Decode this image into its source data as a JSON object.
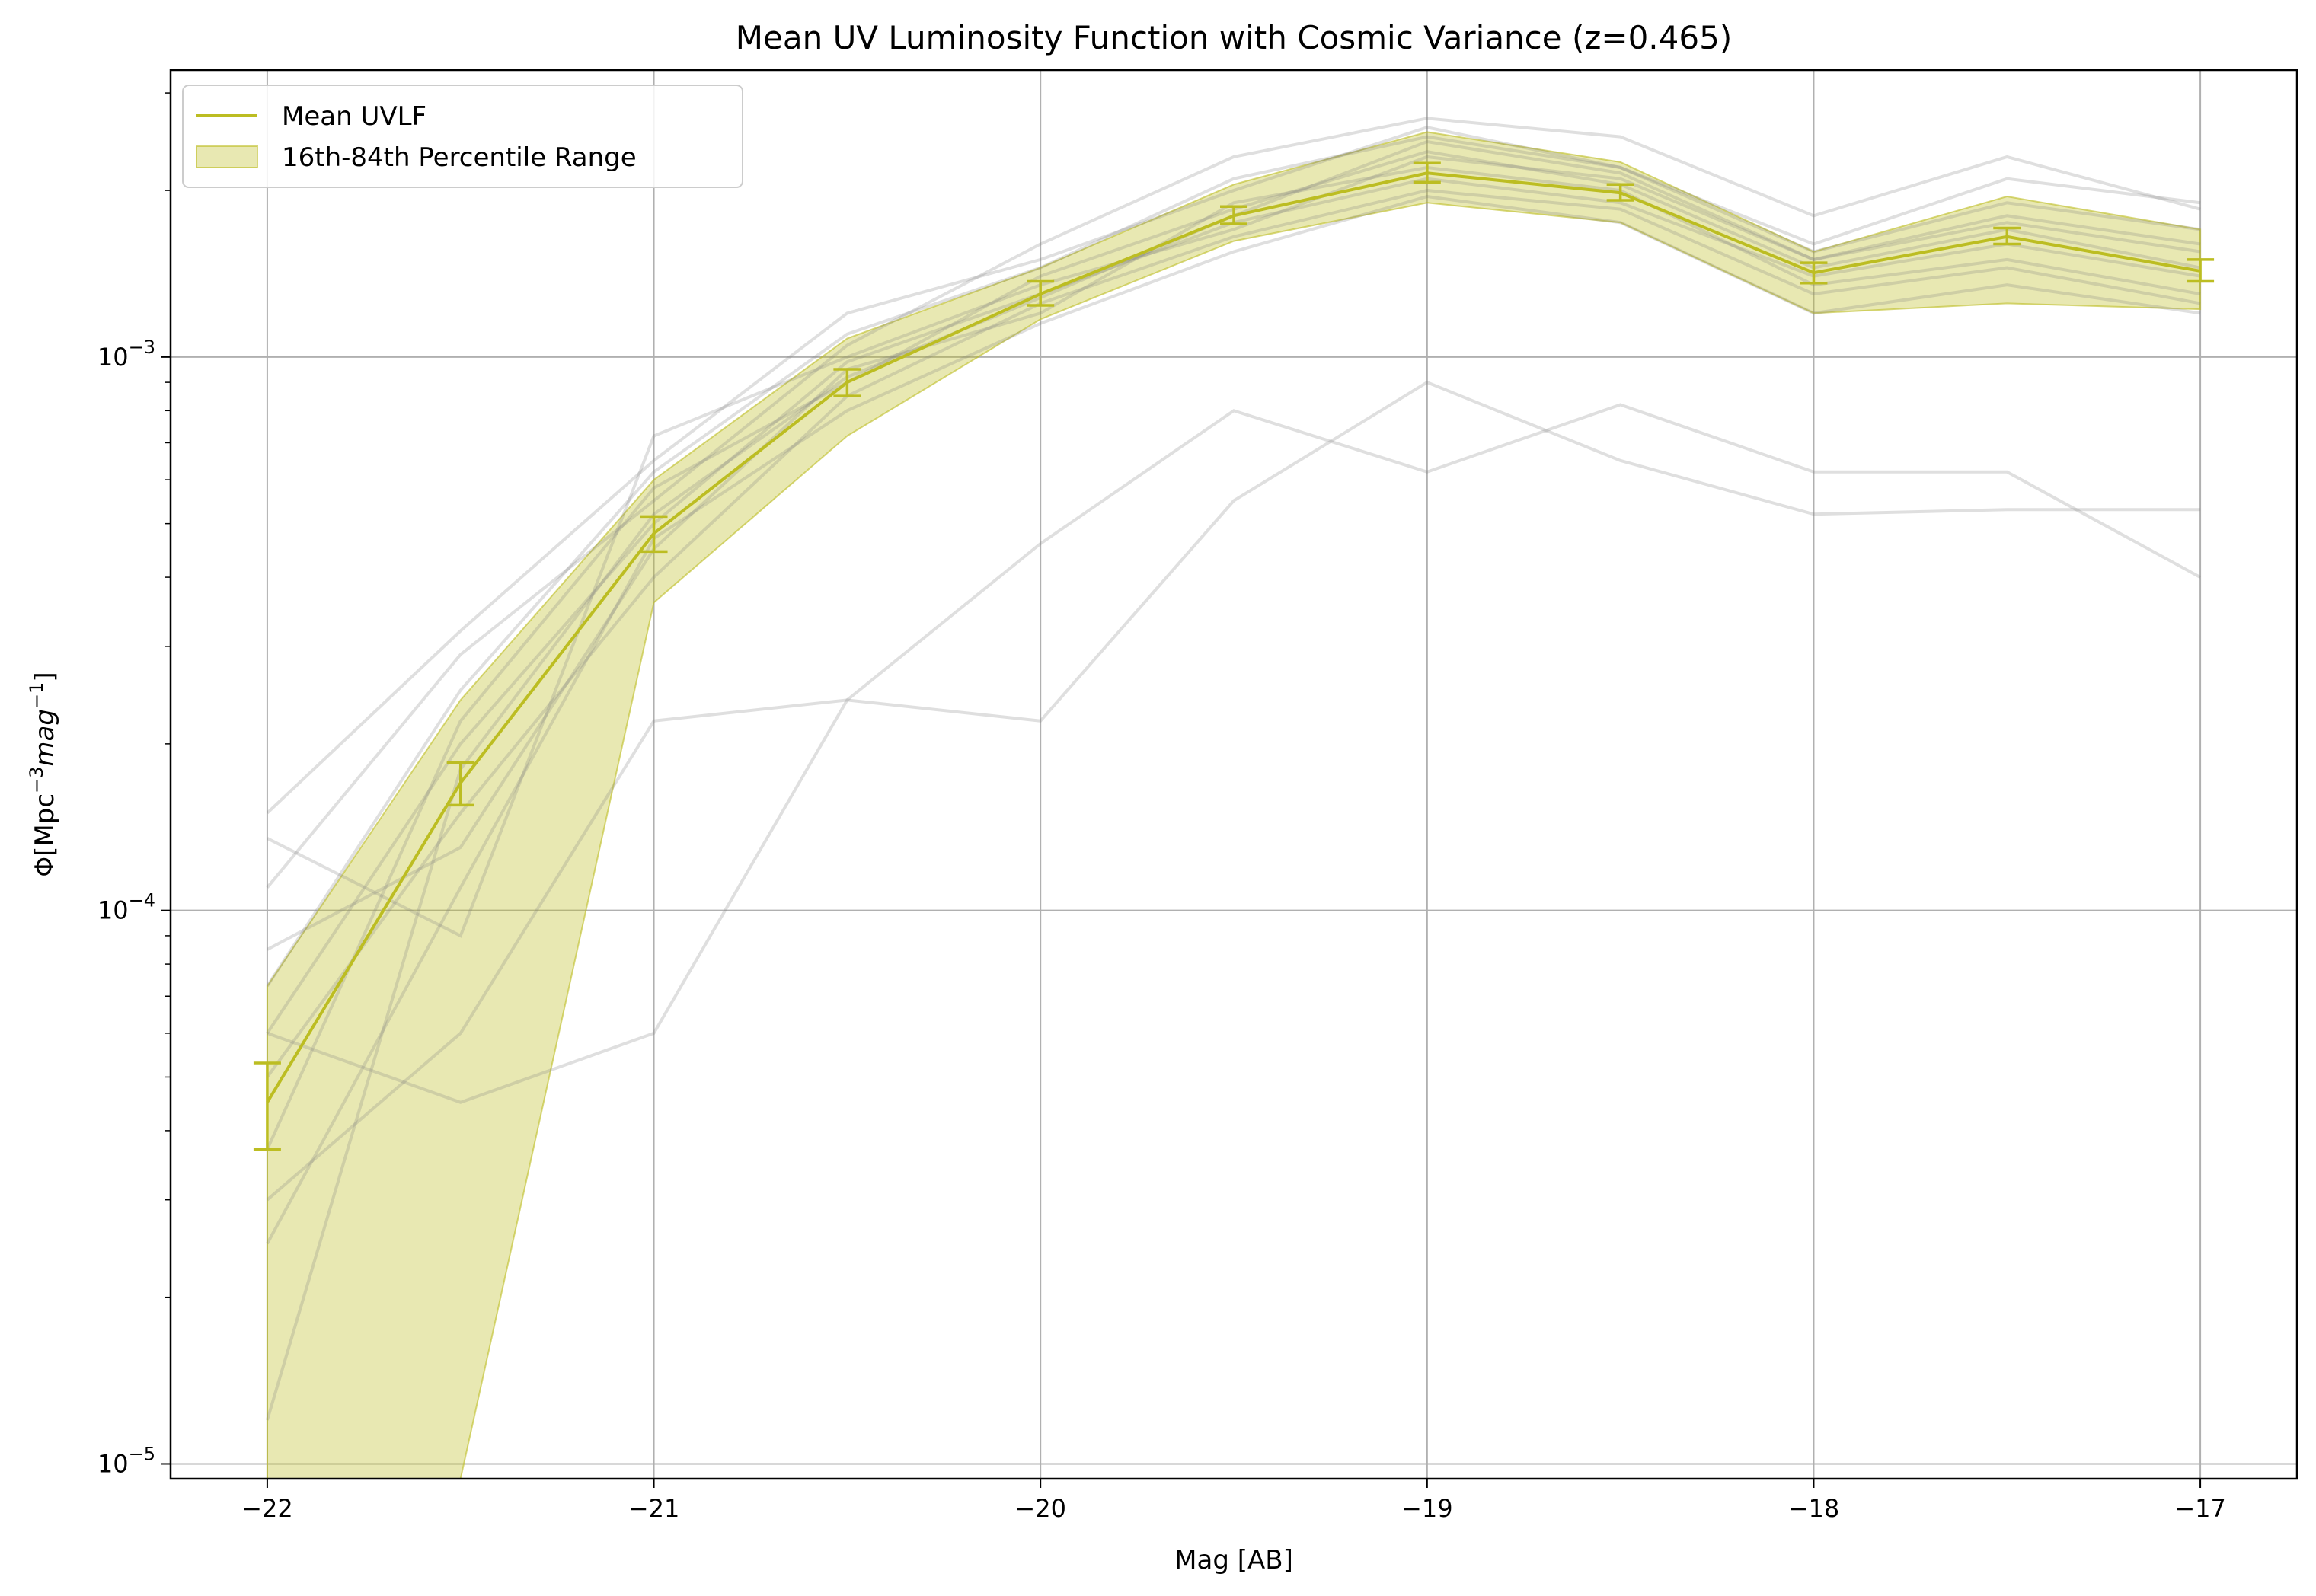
{
  "chart_data": {
    "type": "line",
    "title": "Mean UV Luminosity Function with Cosmic Variance (z=0.465)",
    "xlabel": "Mag [AB]",
    "ylabel_main": "Φ[Mpc",
    "ylabel_exp1": "−3",
    "ylabel_mid": "mag",
    "ylabel_exp2": "−1",
    "ylabel_close": "]",
    "xlim": [
      -22.25,
      -16.75
    ],
    "ylim": [
      9.4e-06,
      0.0033
    ],
    "yscale": "log",
    "grid": true,
    "legend_position": "upper-left",
    "x_ticks": [
      -22,
      -21,
      -20,
      -19,
      -18,
      -17
    ],
    "x_tick_labels": [
      "−22",
      "−21",
      "−20",
      "−19",
      "−18",
      "−17"
    ],
    "y_ticks": [
      {
        "value": 1e-05,
        "base": "10",
        "exp": "−5"
      },
      {
        "value": 0.0001,
        "base": "10",
        "exp": "−4"
      },
      {
        "value": 0.001,
        "base": "10",
        "exp": "−3"
      }
    ],
    "colors": {
      "mean": "#bcbd22",
      "band": "#bcbd22",
      "realizations": "#808080"
    },
    "x": [
      -22,
      -21.5,
      -21,
      -20.5,
      -20,
      -19.5,
      -19,
      -18.5,
      -18,
      -17.5,
      -17
    ],
    "mean": {
      "name": "Mean UVLF",
      "values": [
        4.5e-05,
        0.00017,
        0.00048,
        0.0009,
        0.0013,
        0.0018,
        0.00215,
        0.00198,
        0.00142,
        0.00165,
        0.00143
      ],
      "err_low": [
        3.7e-05,
        0.000155,
        0.000445,
        0.00085,
        0.00124,
        0.00174,
        0.00207,
        0.00192,
        0.00136,
        0.0016,
        0.00137
      ],
      "err_high": [
        5.3e-05,
        0.000185,
        0.000515,
        0.00095,
        0.00137,
        0.00187,
        0.00224,
        0.00205,
        0.00148,
        0.00171,
        0.0015
      ]
    },
    "band": {
      "name": "16th-84th Percentile Range",
      "lower": [
        9.4e-06,
        9.4e-06,
        0.00036,
        0.00072,
        0.00117,
        0.00162,
        0.0019,
        0.00175,
        0.0012,
        0.00125,
        0.00122
      ],
      "upper": [
        7.3e-05,
        0.00024,
        0.0006,
        0.00108,
        0.00145,
        0.00205,
        0.00255,
        0.00225,
        0.00155,
        0.00195,
        0.0017
      ]
    },
    "realizations": [
      [
        0.00015,
        0.00032,
        0.00065,
        0.0012,
        0.0015,
        0.002,
        0.0026,
        0.0022,
        0.0016,
        0.0021,
        0.0019
      ],
      [
        0.000135,
        9e-05,
        0.00072,
        0.001,
        0.00135,
        0.0017,
        0.0023,
        0.0021,
        0.0015,
        0.0018,
        0.0016
      ],
      [
        0.00011,
        0.00029,
        0.00055,
        0.00105,
        0.0016,
        0.0023,
        0.0027,
        0.0025,
        0.0018,
        0.0023,
        0.00185
      ],
      [
        8.5e-05,
        0.00013,
        0.00045,
        0.00095,
        0.0012,
        0.0019,
        0.0022,
        0.002,
        0.00135,
        0.0015,
        0.0013
      ],
      [
        7.3e-05,
        0.00025,
        0.00062,
        0.0011,
        0.00145,
        0.0021,
        0.0025,
        0.0022,
        0.00155,
        0.0019,
        0.0017
      ],
      [
        6e-05,
        0.0002,
        0.0005,
        0.00098,
        0.0013,
        0.00175,
        0.0021,
        0.0019,
        0.0014,
        0.0016,
        0.0014
      ],
      [
        5e-05,
        0.00015,
        0.0004,
        0.00085,
        0.00125,
        0.00165,
        0.002,
        0.00185,
        0.0013,
        0.00145,
        0.00125
      ],
      [
        3.7e-05,
        0.00022,
        0.00058,
        0.0009,
        0.0014,
        0.00185,
        0.00235,
        0.00205,
        0.00145,
        0.0017,
        0.00145
      ],
      [
        2.5e-05,
        0.00011,
        0.00047,
        0.0008,
        0.00115,
        0.00155,
        0.00195,
        0.00175,
        0.0012,
        0.00135,
        0.0012
      ],
      [
        1.2e-05,
        0.00018,
        0.00052,
        0.00092,
        0.00128,
        0.0018,
        0.00245,
        0.00215,
        0.0015,
        0.00175,
        0.00155
      ],
      [
        3e-05,
        6e-05,
        0.00022,
        0.00024,
        0.00022,
        0.00055,
        0.0009,
        0.00065,
        0.00052,
        0.00053,
        0.00053
      ],
      [
        6e-05,
        4.5e-05,
        6e-05,
        0.00024,
        0.00046,
        0.0008,
        0.00062,
        0.00082,
        0.00062,
        0.00062,
        0.0004
      ]
    ]
  }
}
